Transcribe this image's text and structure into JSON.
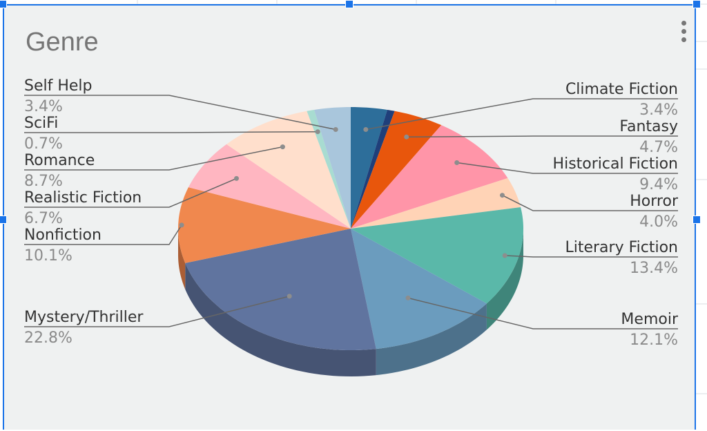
{
  "chart_data": {
    "type": "pie",
    "title": "Genre",
    "slices": [
      {
        "label": "Climate Fiction",
        "pct_label": "3.4%",
        "value": 3.4,
        "color": "#2d6e9a",
        "side_color": "#1f5070"
      },
      {
        "label": "",
        "pct_label": "",
        "value": 0.7,
        "color": "#1f3f7a",
        "side_color": "#142a52"
      },
      {
        "label": "Fantasy",
        "pct_label": "4.7%",
        "value": 4.7,
        "color": "#e8560c",
        "side_color": "#a83d08"
      },
      {
        "label": "Historical Fiction",
        "pct_label": "9.4%",
        "value": 9.4,
        "color": "#ff95a8",
        "side_color": "#c56f7e"
      },
      {
        "label": "Horror",
        "pct_label": "4.0%",
        "value": 4.0,
        "color": "#ffd3b6",
        "side_color": "#c7a28a"
      },
      {
        "label": "Literary Fiction",
        "pct_label": "13.4%",
        "value": 13.4,
        "color": "#5ab8a9",
        "side_color": "#3f857a"
      },
      {
        "label": "Memoir",
        "pct_label": "12.1%",
        "value": 12.1,
        "color": "#6b9cbe",
        "side_color": "#4d718b"
      },
      {
        "label": "Mystery/Thriller",
        "pct_label": "22.8%",
        "value": 22.8,
        "color": "#60749f",
        "side_color": "#465473"
      },
      {
        "label": "Nonfiction",
        "pct_label": "10.1%",
        "value": 10.1,
        "color": "#f0884e",
        "side_color": "#ab5e35"
      },
      {
        "label": "Realistic Fiction",
        "pct_label": "6.7%",
        "value": 6.7,
        "color": "#ffb6c1",
        "side_color": "#c5878f"
      },
      {
        "label": "Romance",
        "pct_label": "8.7%",
        "value": 8.7,
        "color": "#ffdfcc",
        "side_color": "#c9ab98"
      },
      {
        "label": "SciFi",
        "pct_label": "0.7%",
        "value": 0.7,
        "color": "#a8dcd1",
        "side_color": "#7ba79d"
      },
      {
        "label": "Self Help",
        "pct_label": "3.4%",
        "value": 3.4,
        "color": "#a9c6dc",
        "side_color": "#7f97a8"
      }
    ],
    "legend": "callout labels with leader lines on left and right"
  }
}
